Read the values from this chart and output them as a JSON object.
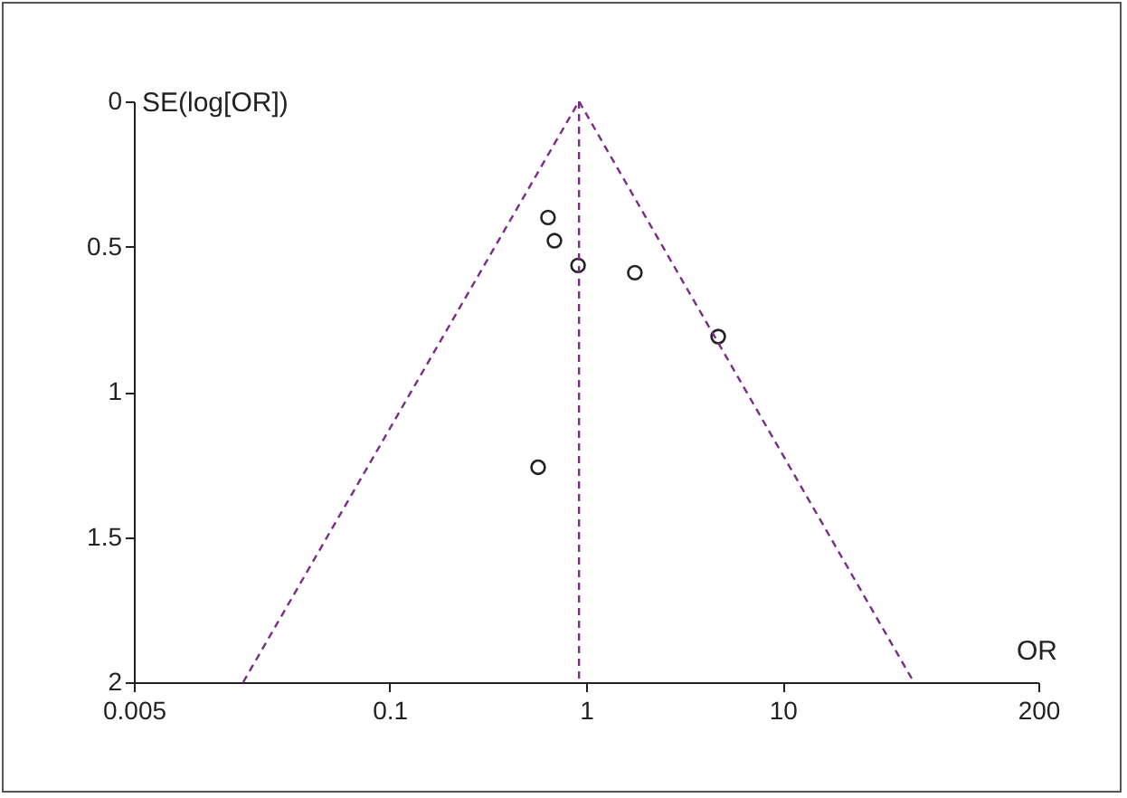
{
  "chart_data": {
    "type": "scatter",
    "xlabel": "OR",
    "ylabel": "SE(log[OR])",
    "log": "x",
    "xlim": [
      0.005,
      200
    ],
    "xticks": [
      0.005,
      0.1,
      1,
      10,
      200
    ],
    "ylim": [
      2,
      0
    ],
    "yticks": [
      0,
      0.5,
      1,
      1.5,
      2
    ],
    "marker": "circle",
    "series": [
      {
        "color": "#222222",
        "x": [
          0.64,
          0.69,
          0.91,
          1.77,
          4.7,
          0.57
        ],
        "values": [
          0.4,
          0.48,
          0.565,
          0.59,
          0.81,
          1.26
        ]
      },
      {
        "type": "line",
        "color": "#7b2a8a",
        "line_style": "dashed",
        "marker": "none",
        "x": [
          0.018,
          0.92,
          46.5
        ],
        "values": [
          2,
          0,
          2
        ]
      }
    ],
    "ref_lines": [
      {
        "axis": "x",
        "value": 0.92,
        "color": "#7b2a8a",
        "line_style": "dashed"
      }
    ]
  }
}
